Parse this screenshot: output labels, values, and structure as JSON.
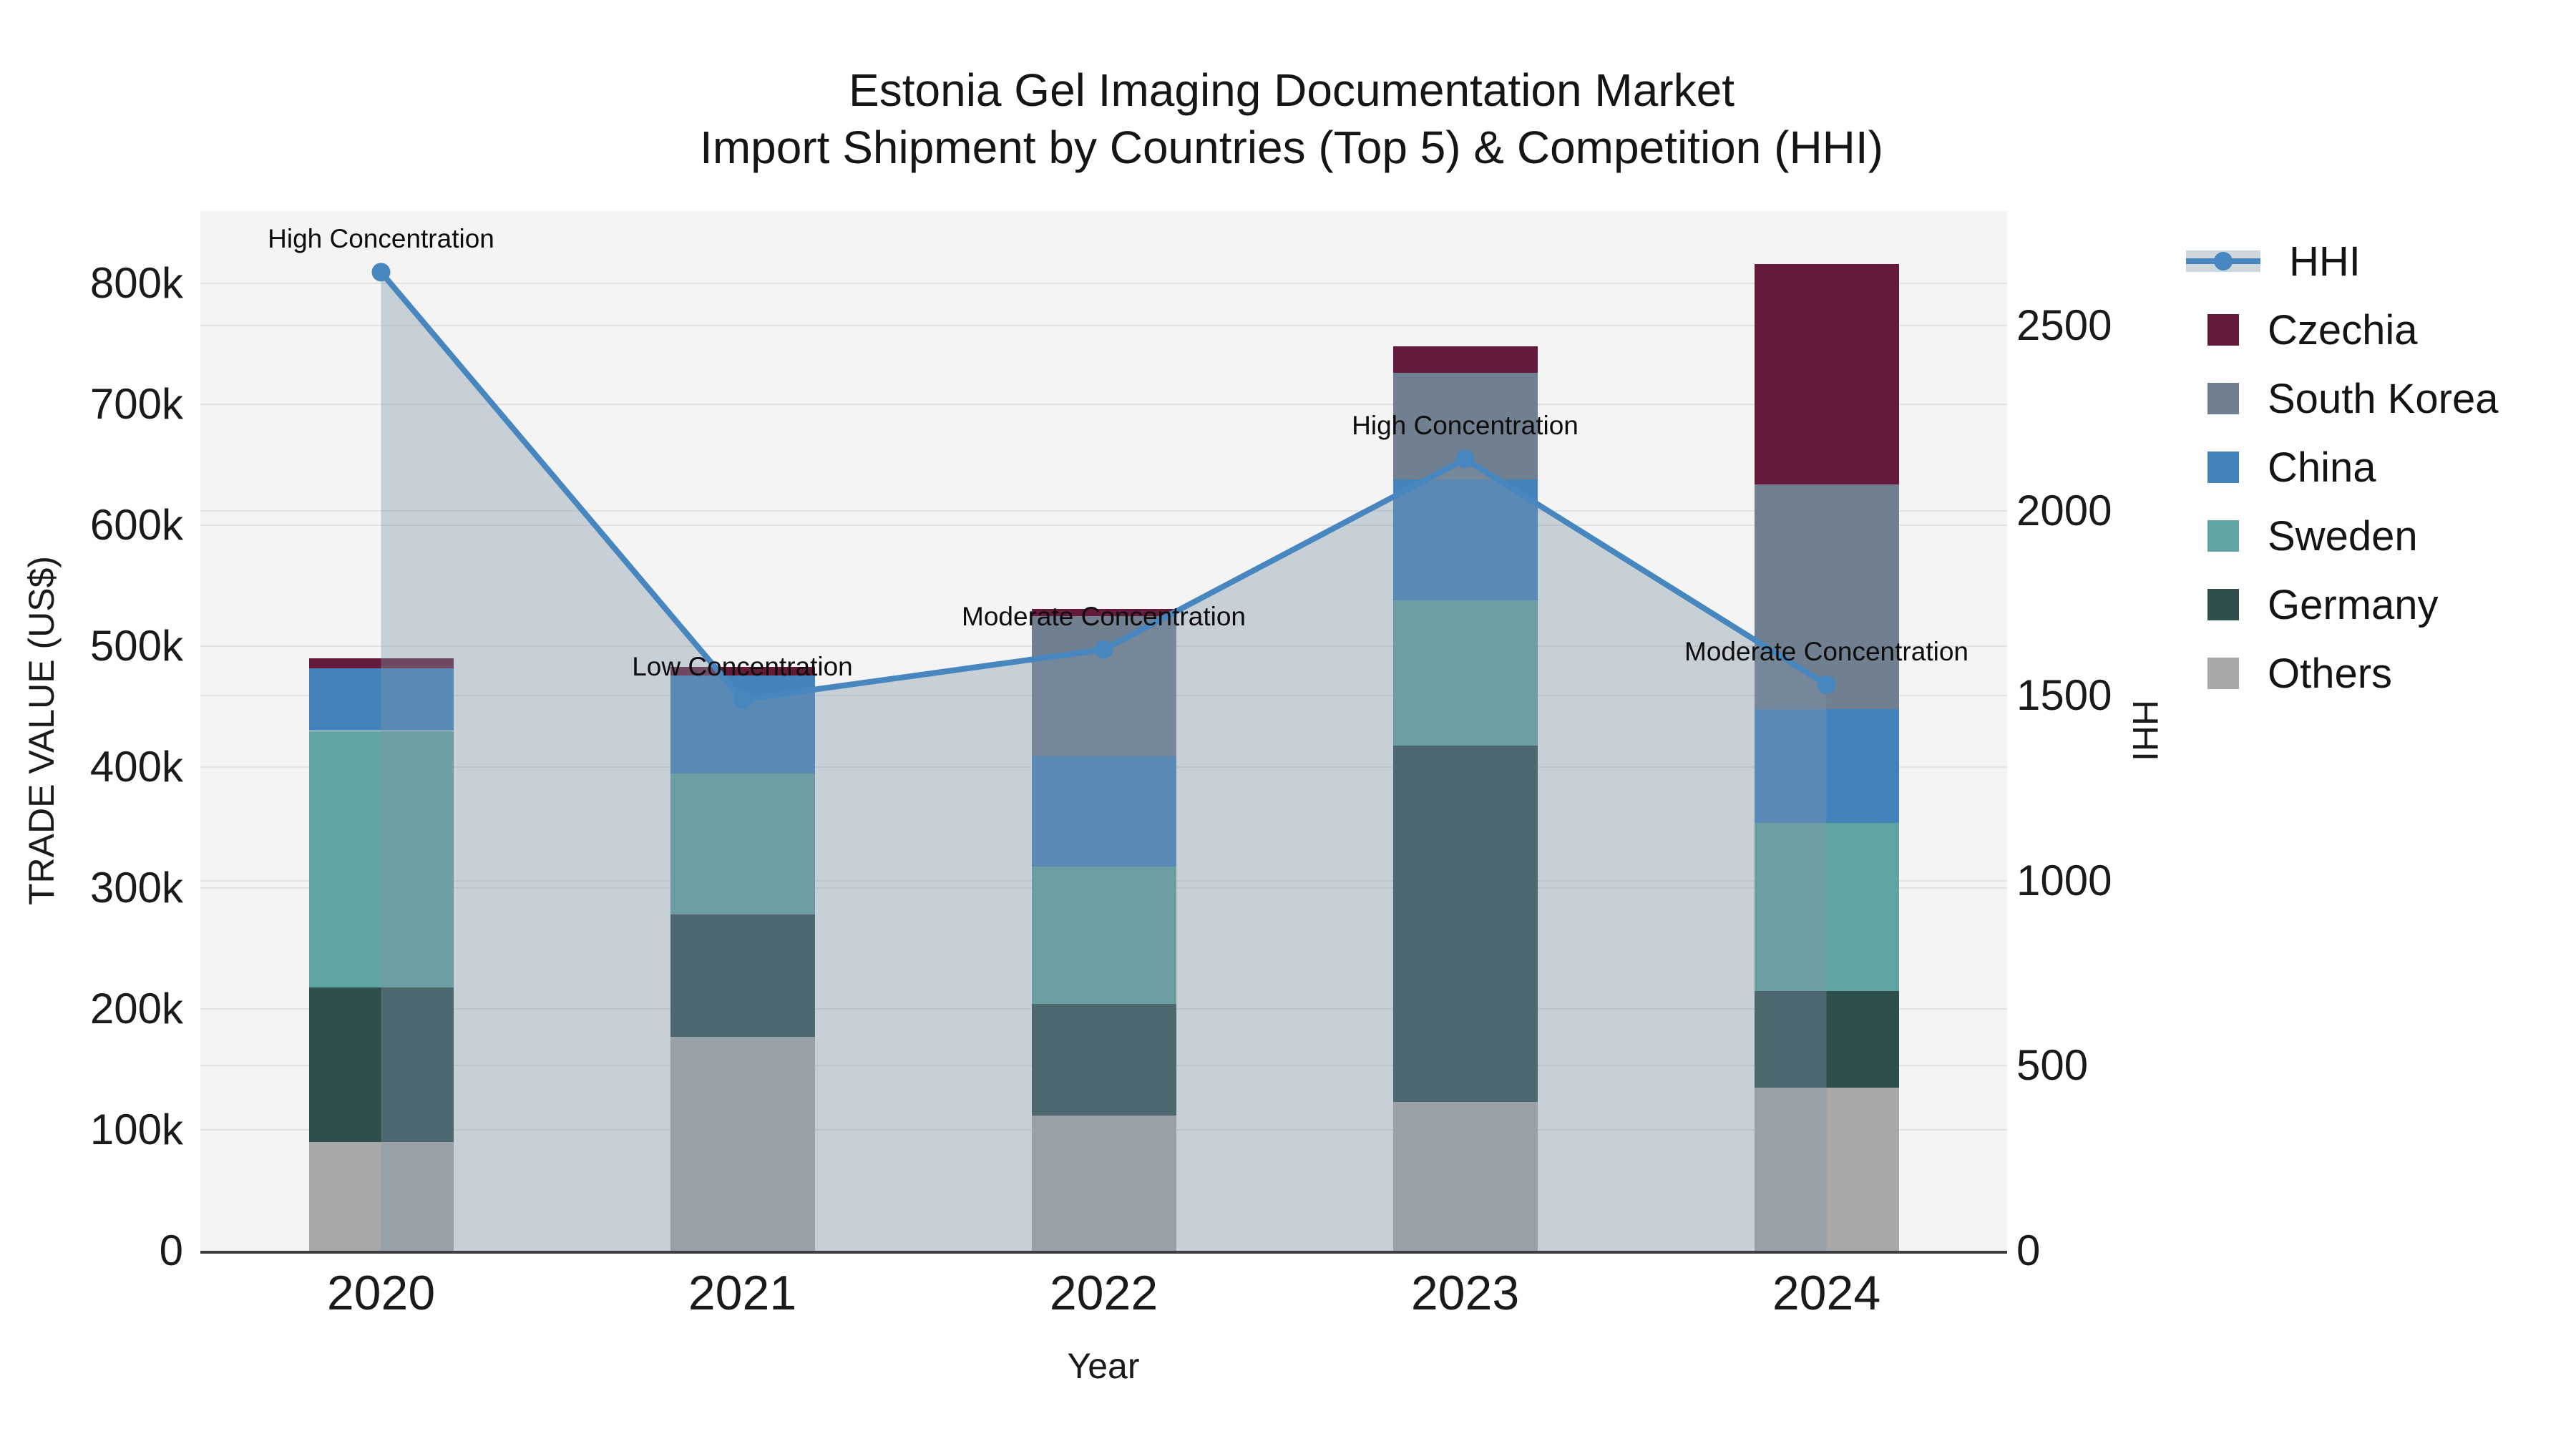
{
  "chart_data": {
    "type": "combo: stacked bar (left axis) + line with area fill (right axis)",
    "title": "Estonia Gel Imaging Documentation Market",
    "subtitle": "Import Shipment by Countries (Top 5) & Competition (HHI)",
    "xlabel": "Year",
    "ylabel_left": "TRADE VALUE (US$)",
    "ylabel_right": "HHI",
    "categories": [
      "2020",
      "2021",
      "2022",
      "2023",
      "2024"
    ],
    "bar_value_unit": "thousand US$",
    "stacked_series_bottom_to_top": [
      {
        "name": "Others",
        "color": "#a8a8a8",
        "values_k": [
          90,
          177,
          112,
          123,
          135
        ]
      },
      {
        "name": "Germany",
        "color": "#2f4f4d",
        "values_k": [
          128,
          101,
          92,
          295,
          80
        ]
      },
      {
        "name": "Sweden",
        "color": "#5fa4a1",
        "values_k": [
          212,
          117,
          114,
          120,
          139
        ]
      },
      {
        "name": "China",
        "color": "#4383bb",
        "values_k": [
          52,
          81,
          91,
          100,
          94
        ]
      },
      {
        "name": "South Korea",
        "color": "#708090",
        "values_k": [
          0,
          0,
          116,
          88,
          186
        ]
      },
      {
        "name": "Czechia",
        "color": "#661a3b",
        "values_k": [
          8,
          7,
          6,
          22,
          182
        ]
      }
    ],
    "bar_totals_k": [
      490,
      483,
      531,
      748,
      816
    ],
    "line_series": {
      "name": "HHI",
      "color": "#4786be",
      "fill_color": "rgba(127,146,169,0.38)",
      "values": [
        2645,
        1490,
        1625,
        2140,
        1530
      ]
    },
    "annotations": [
      {
        "year": "2020",
        "text": "High Concentration"
      },
      {
        "year": "2021",
        "text": "Low Concentration"
      },
      {
        "year": "2022",
        "text": "Moderate Concentration"
      },
      {
        "year": "2023",
        "text": "High Concentration"
      },
      {
        "year": "2024",
        "text": "Moderate Concentration"
      }
    ],
    "axes": {
      "left_ticks": {
        "values_k": [
          0,
          100,
          200,
          300,
          400,
          500,
          600,
          700,
          800
        ],
        "labels": [
          "0",
          "100k",
          "200k",
          "300k",
          "400k",
          "500k",
          "600k",
          "700k",
          "800k"
        ],
        "axis_max_k": 860
      },
      "right_ticks": {
        "values": [
          0,
          500,
          1000,
          1500,
          2000,
          2500
        ],
        "labels": [
          "0",
          "500",
          "1000",
          "1500",
          "2000",
          "2500"
        ],
        "axis_max": 2810
      }
    },
    "legend_order": [
      "HHI",
      "Czechia",
      "South Korea",
      "China",
      "Sweden",
      "Germany",
      "Others"
    ],
    "colors": {
      "plot_background": "#f4f4f4",
      "grid": "#e3e3e3",
      "axis_spine": "#3d3d3d",
      "text": "#1a1a1a"
    }
  }
}
